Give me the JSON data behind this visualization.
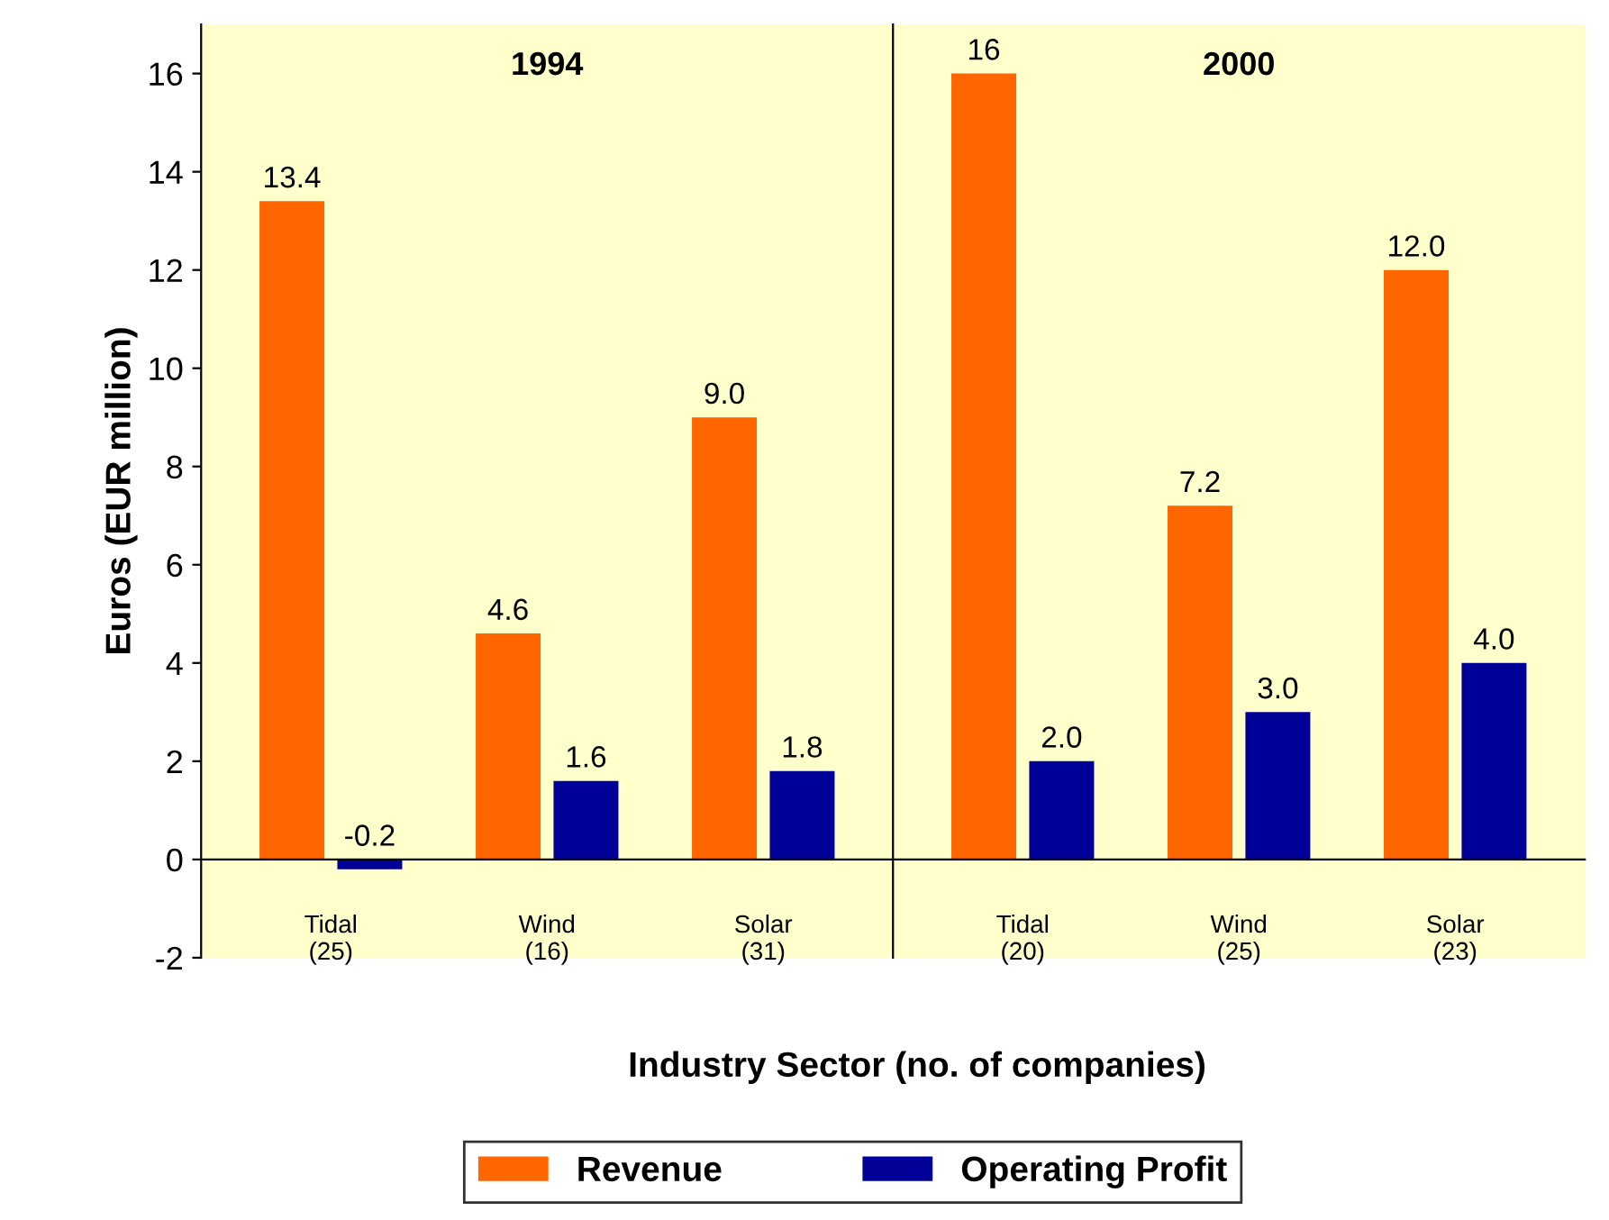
{
  "chart_data": [
    {
      "type": "bar",
      "title": "1994",
      "xlabel": "Industry Sector (no. of companies)",
      "ylabel": "Euros (EUR million)",
      "categories": [
        "Tidal\n(25)",
        "Wind\n(16)",
        "Solar\n(31)"
      ],
      "series": [
        {
          "name": "Revenue",
          "color": "#ff6600",
          "values": [
            13.4,
            4.6,
            9.0
          ],
          "value_labels": [
            "13.4",
            "4.6",
            "9.0"
          ]
        },
        {
          "name": "Operating Profit",
          "color": "#000099",
          "values": [
            -0.2,
            1.6,
            1.8
          ],
          "value_labels": [
            "-0.2",
            "1.6",
            "1.8"
          ]
        }
      ],
      "ylim": [
        -2,
        17
      ],
      "yticks": [
        -2,
        0,
        2,
        4,
        6,
        8,
        10,
        12,
        14,
        16
      ],
      "legend": "bottom"
    },
    {
      "type": "bar",
      "title": "2000",
      "categories": [
        "Tidal\n(20)",
        "Wind\n(25)",
        "Solar\n(23)"
      ],
      "series": [
        {
          "color": "#ff6600",
          "values": [
            16,
            7.2,
            12.0
          ],
          "value_labels": [
            "16",
            "7.2",
            "12.0"
          ]
        },
        {
          "color": "#000099",
          "values": [
            2.0,
            3.0,
            4.0
          ],
          "value_labels": [
            "2.0",
            "3.0",
            "4.0"
          ]
        }
      ],
      "ylim": [
        -2,
        17
      ],
      "yticks": [
        -2,
        0,
        2,
        4,
        6,
        8,
        10,
        12,
        14,
        16
      ],
      "tick_labels": "x"
    }
  ]
}
